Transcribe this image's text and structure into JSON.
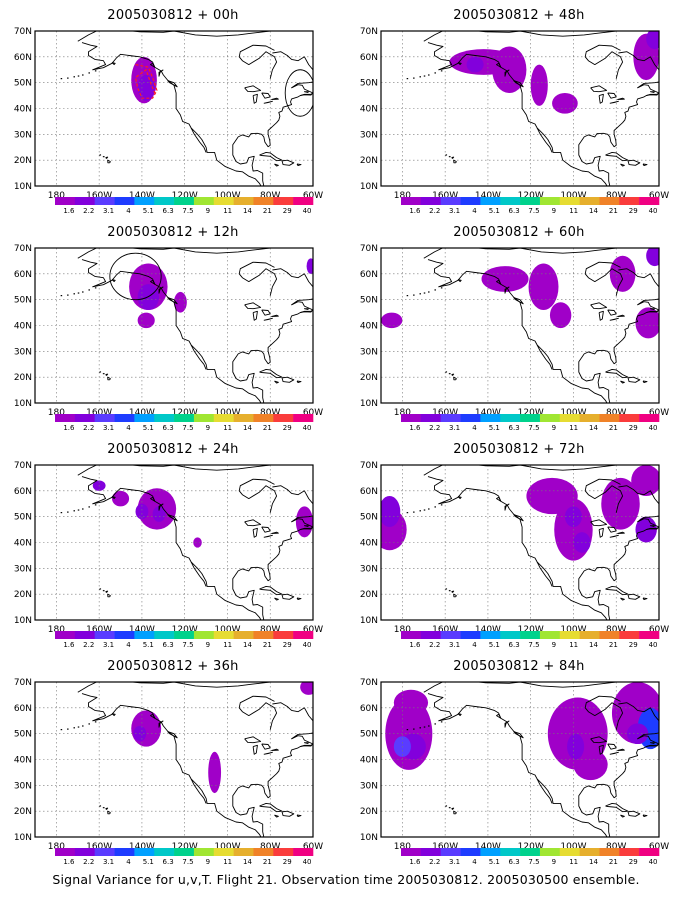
{
  "panels": [
    {
      "title": "2005030812 + 00h"
    },
    {
      "title": "2005030812 + 48h"
    },
    {
      "title": "2005030812 + 12h"
    },
    {
      "title": "2005030812 + 60h"
    },
    {
      "title": "2005030812 + 24h"
    },
    {
      "title": "2005030812 + 72h"
    },
    {
      "title": "2005030812 + 36h"
    },
    {
      "title": "2005030812 + 84h"
    }
  ],
  "axes": {
    "lat_labels": [
      "70N",
      "60N",
      "50N",
      "40N",
      "30N",
      "20N",
      "10N"
    ],
    "lon_labels": [
      "180",
      "160W",
      "140W",
      "120W",
      "100W",
      "80W",
      "60W"
    ]
  },
  "colorbar": {
    "labels": [
      "1.6",
      "2.2",
      "3.1",
      "4",
      "5.1",
      "6.3",
      "7.5",
      "9",
      "11",
      "14",
      "21",
      "29",
      "40"
    ],
    "colors": [
      "#a000c8",
      "#8200dc",
      "#5a3cff",
      "#1e3cff",
      "#00a0ff",
      "#00c8c8",
      "#00d28c",
      "#a0e632",
      "#e6dc32",
      "#e6af2d",
      "#f08228",
      "#fa3c3c",
      "#f00082"
    ]
  },
  "footer": "Signal Variance for u,v,T. Flight 21. Observation time 2005030812. 2005030500 ensemble."
}
